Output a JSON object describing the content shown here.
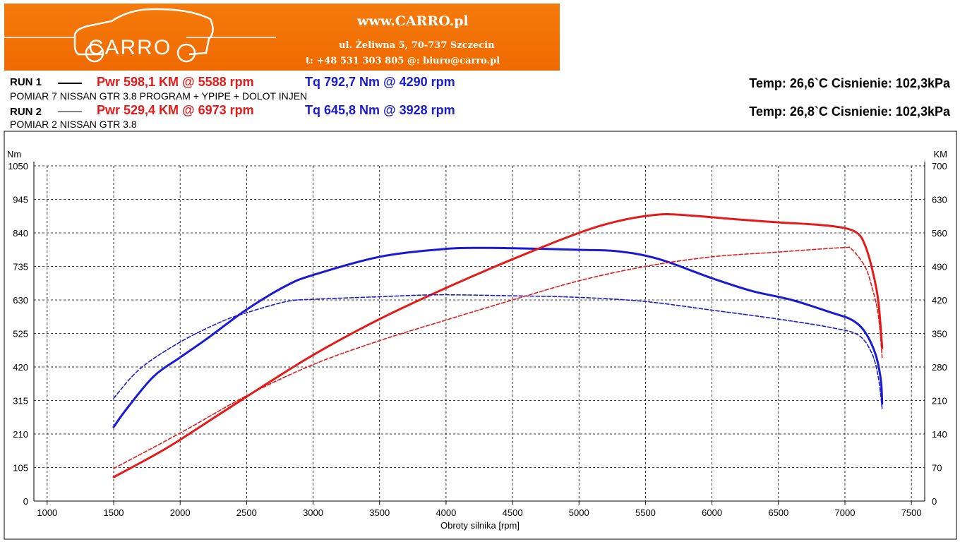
{
  "header": {
    "logo_text": "CARRO",
    "site": "www.CARRO.pl",
    "address": "ul. Żeliwna 5, 70-737 Szczecin",
    "contact": "t: +48 531 303 805   @: biuro@carro.pl"
  },
  "runs": [
    {
      "label": "RUN 1",
      "pwr": "Pwr  598,1 KM @ 5588 rpm",
      "tq": "Tq 792,7 Nm @ 4290 rpm",
      "desc": "POMIAR 7 NISSAN GTR 3.8 PROGRAM + YPIPE + DOLOT INJEN",
      "conditions": "Temp: 26,6`C    Cisnienie: 102,3kPa",
      "line_style": "solid"
    },
    {
      "label": "RUN 2",
      "pwr": "Pwr  529,4 KM @ 6973 rpm",
      "tq": "Tq 645,8 Nm @ 3928 rpm",
      "desc": "POMIAR 2 NISSAN GTR 3.8",
      "conditions": "Temp: 26,8`C    Cisnienie: 102,3kPa",
      "line_style": "dashed"
    }
  ],
  "colors": {
    "power": "#e31b1b",
    "torque": "#1a1ad6",
    "banner": "#f27300"
  },
  "chart_data": {
    "type": "line",
    "xlabel": "Obroty silnika [rpm]",
    "ylabel": "Nm",
    "y2label": "KM",
    "xlim": [
      900,
      7600
    ],
    "ylim": [
      0,
      1050
    ],
    "y2lim": [
      0,
      700
    ],
    "x_ticks": [
      1000,
      1500,
      2000,
      2500,
      3000,
      3500,
      4000,
      4500,
      5000,
      5500,
      6000,
      6500,
      7000,
      7500
    ],
    "y_ticks": [
      0,
      105,
      210,
      315,
      420,
      525,
      630,
      735,
      840,
      945,
      1050
    ],
    "y2_ticks": [
      0,
      70,
      140,
      210,
      280,
      350,
      420,
      490,
      560,
      630,
      700
    ],
    "grid": true,
    "series": [
      {
        "name": "RUN 1",
        "quantity": "Tq",
        "axis": "left",
        "style": "solid",
        "color": "#1a1ad6",
        "x": [
          1500,
          1600,
          1800,
          2000,
          2200,
          2500,
          2800,
          3000,
          3500,
          4000,
          4290,
          4500,
          5000,
          5300,
          5600,
          6000,
          6300,
          6600,
          6900,
          7050,
          7150,
          7230,
          7270,
          7280
        ],
        "y": [
          232,
          290,
          390,
          450,
          508,
          600,
          675,
          708,
          765,
          790,
          793,
          792,
          787,
          782,
          758,
          698,
          658,
          630,
          590,
          568,
          530,
          460,
          380,
          305
        ]
      },
      {
        "name": "RUN 1",
        "quantity": "Pwr",
        "axis": "right",
        "style": "solid",
        "color": "#e31b1b",
        "x": [
          1500,
          1800,
          2000,
          2500,
          3000,
          3500,
          4000,
          4500,
          5000,
          5300,
          5588,
          5800,
          6200,
          6500,
          6800,
          7000,
          7100,
          7150,
          7200,
          7250,
          7280
        ],
        "y": [
          50,
          95,
          128,
          218,
          305,
          380,
          445,
          505,
          560,
          585,
          598,
          597,
          588,
          582,
          577,
          570,
          558,
          535,
          490,
          420,
          320
        ]
      },
      {
        "name": "RUN 2",
        "quantity": "Tq",
        "axis": "left",
        "style": "dashed",
        "color": "#1a1ad6",
        "x": [
          1500,
          1700,
          2000,
          2300,
          2500,
          2800,
          3000,
          3500,
          3928,
          4500,
          5000,
          5500,
          6000,
          6500,
          6900,
          7100,
          7200,
          7250,
          7280
        ],
        "y": [
          322,
          415,
          498,
          560,
          590,
          625,
          632,
          640,
          646,
          643,
          638,
          625,
          598,
          570,
          543,
          520,
          465,
          390,
          290
        ]
      },
      {
        "name": "RUN 2",
        "quantity": "Pwr",
        "axis": "right",
        "style": "dashed",
        "color": "#e31b1b",
        "x": [
          1500,
          2000,
          2500,
          3000,
          3500,
          4000,
          4500,
          5000,
          5500,
          6000,
          6500,
          6973,
          7050,
          7150,
          7200,
          7250,
          7280
        ],
        "y": [
          68,
          142,
          220,
          285,
          335,
          378,
          420,
          460,
          490,
          510,
          520,
          529,
          526,
          490,
          450,
          390,
          300
        ]
      }
    ]
  }
}
